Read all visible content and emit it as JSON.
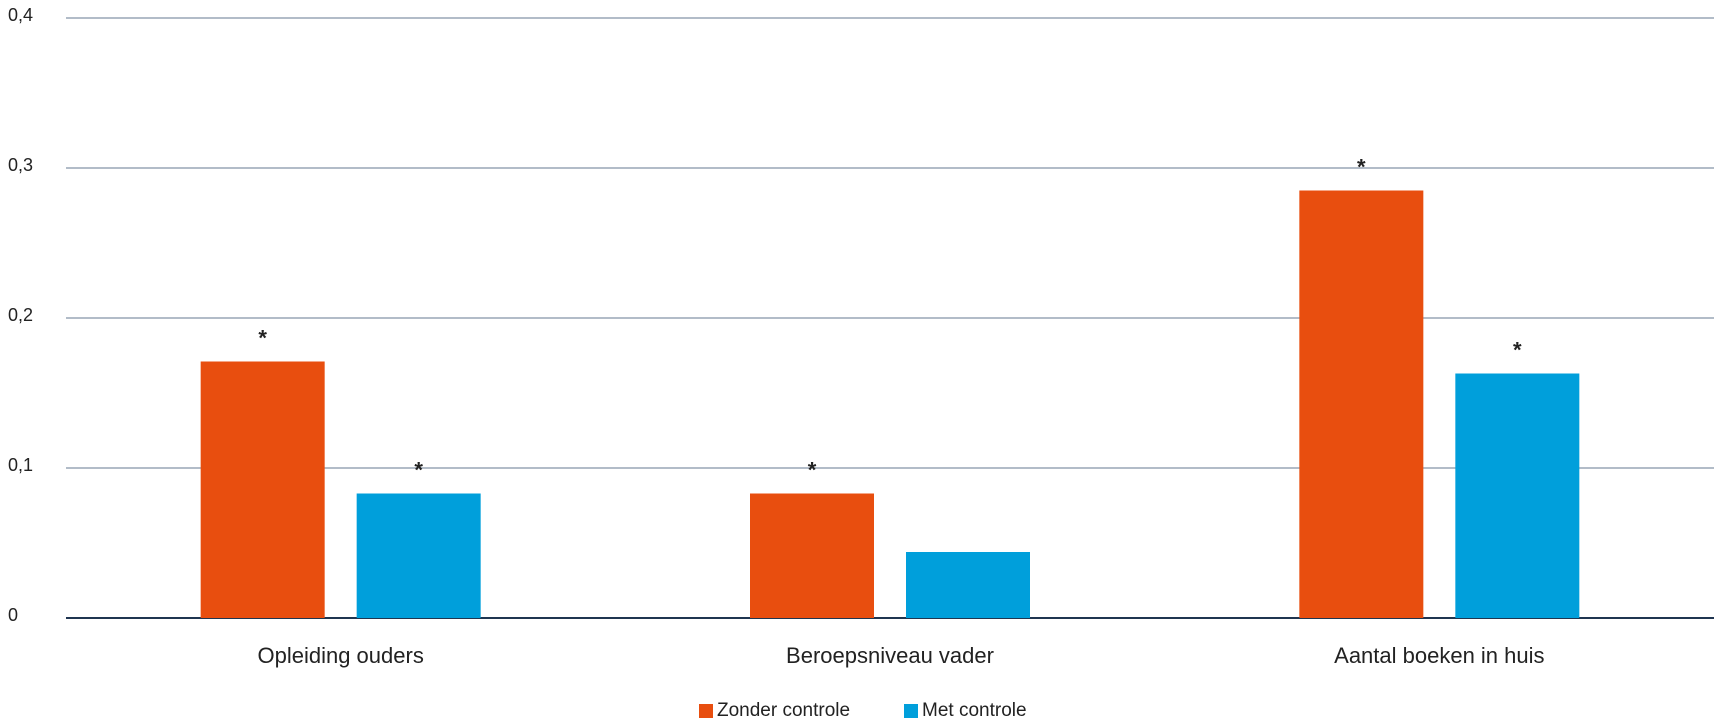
{
  "chart_data": {
    "type": "bar",
    "categories": [
      "Opleiding ouders",
      "Beroepsniveau vader",
      "Aantal boeken in huis"
    ],
    "series": [
      {
        "name": "Zonder controle",
        "color": "#e84e0f",
        "values": [
          0.171,
          0.083,
          0.285
        ],
        "markers": [
          "*",
          "*",
          "*"
        ]
      },
      {
        "name": "Met controle",
        "color": "#009fdb",
        "values": [
          0.083,
          0.044,
          0.163
        ],
        "markers": [
          "*",
          null,
          "*"
        ]
      }
    ],
    "ylim": [
      0,
      0.4
    ],
    "yticks": [
      0,
      {
        "value": 0.1,
        "label": "0,1"
      },
      {
        "value": 0.2,
        "label": "0,2"
      },
      {
        "value": 0.3,
        "label": "0,3"
      },
      {
        "value": 0.4,
        "label": "0,4"
      }
    ],
    "grid": true,
    "legend": "bottom"
  }
}
